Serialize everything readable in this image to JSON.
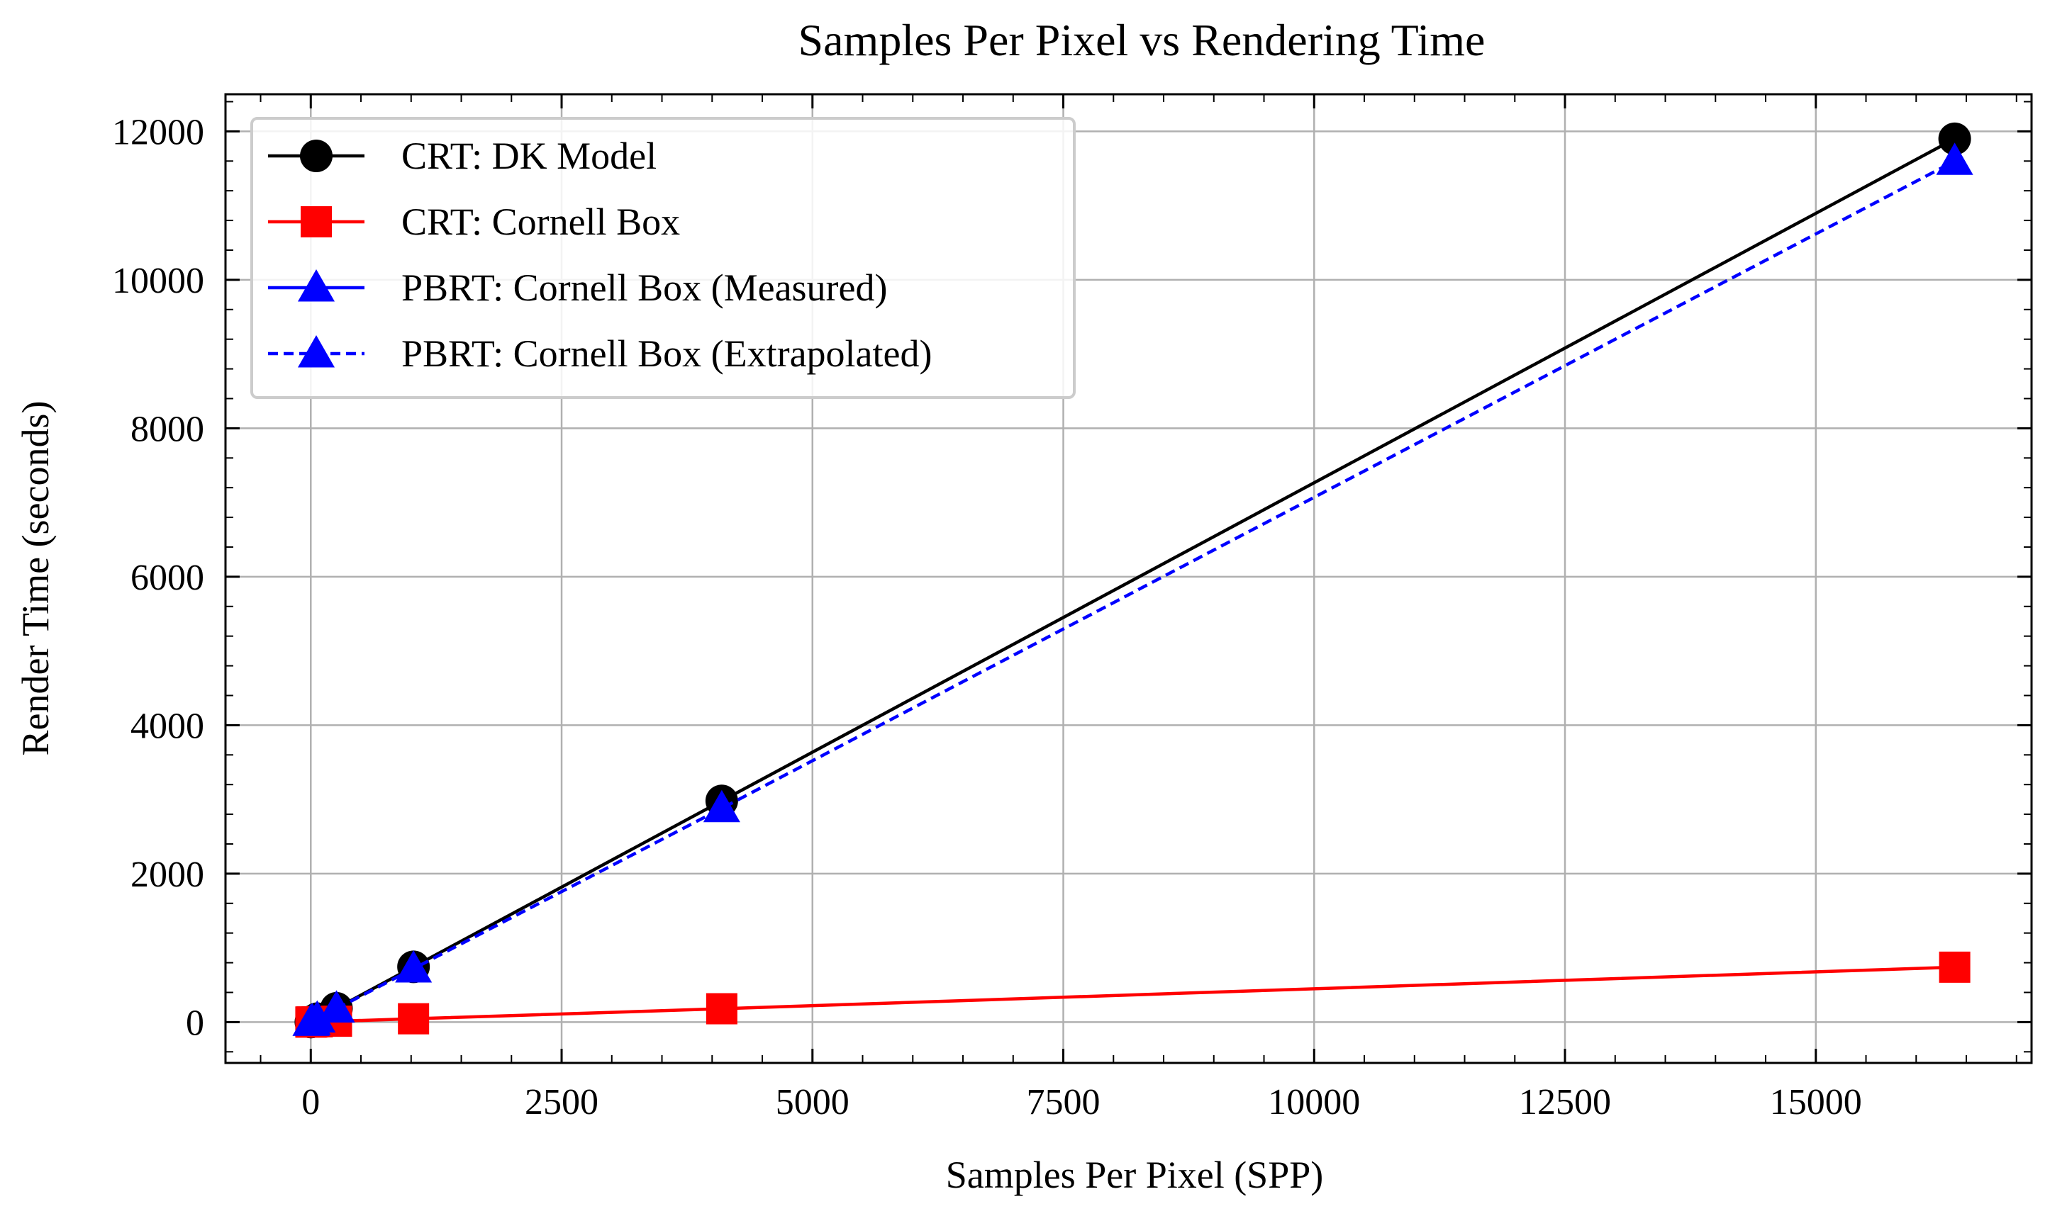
{
  "chart_data": {
    "type": "line",
    "title": "Samples Per Pixel vs Rendering Time",
    "xlabel": "Samples Per Pixel (SPP)",
    "ylabel": "Render Time (seconds)",
    "xlim": [
      -850,
      17150
    ],
    "ylim": [
      -550,
      12500
    ],
    "xticks": [
      0,
      2500,
      5000,
      7500,
      10000,
      12500,
      15000
    ],
    "yticks": [
      0,
      2000,
      4000,
      6000,
      8000,
      10000,
      12000
    ],
    "xtick_labels": [
      "0",
      "2500",
      "5000",
      "7500",
      "10000",
      "12500",
      "15000"
    ],
    "ytick_labels": [
      "0",
      "2000",
      "4000",
      "6000",
      "8000",
      "10000",
      "12000"
    ],
    "grid": true,
    "legend_position": "top-left",
    "series": [
      {
        "name": "CRT: DK Model",
        "color": "#000000",
        "marker": "circle",
        "linestyle": "solid",
        "x": [
          1,
          4,
          16,
          64,
          256,
          1024,
          4096,
          16384
        ],
        "y": [
          1,
          3,
          12,
          47,
          186,
          745,
          2980,
          11900
        ]
      },
      {
        "name": "CRT: Cornell Box",
        "color": "#ff0000",
        "marker": "square",
        "linestyle": "solid",
        "x": [
          1,
          4,
          16,
          64,
          256,
          1024,
          4096,
          16384
        ],
        "y": [
          1,
          1,
          2,
          4,
          12,
          45,
          180,
          740
        ]
      },
      {
        "name": "PBRT: Cornell Box (Measured)",
        "color": "#0000ff",
        "marker": "triangle",
        "linestyle": "solid",
        "x": [
          1,
          4,
          16,
          64,
          256
        ],
        "y": [
          1,
          3,
          11,
          45,
          180
        ]
      },
      {
        "name": "PBRT: Cornell Box (Extrapolated)",
        "color": "#0000ff",
        "marker": "triangle",
        "linestyle": "dashed",
        "x": [
          256,
          1024,
          4096,
          16384
        ],
        "y": [
          180,
          720,
          2880,
          11600
        ]
      }
    ]
  }
}
